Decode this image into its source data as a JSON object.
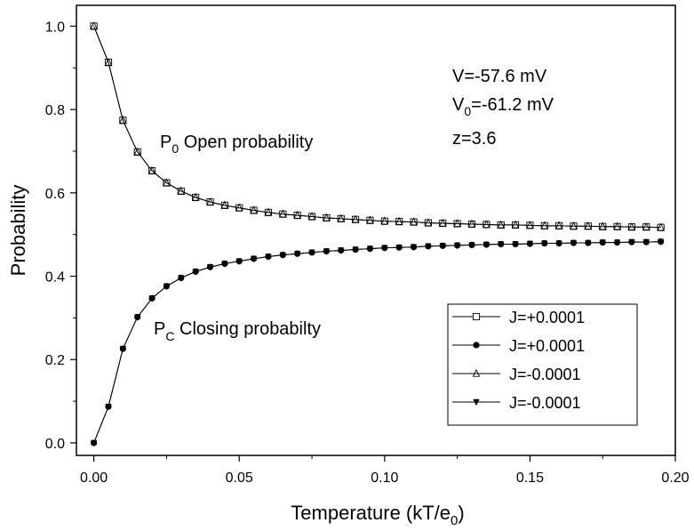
{
  "chart_data": {
    "type": "line",
    "xlabel": "Temperature (kT/e",
    "xlabel_sub": "0",
    "xlabel_end": ")",
    "ylabel": "Probability",
    "xlim": [
      -0.006,
      0.2
    ],
    "ylim": [
      -0.03,
      1.05
    ],
    "grid": false,
    "x_ticks": [
      {
        "value": 0.0,
        "label": "0.00"
      },
      {
        "value": 0.05,
        "label": "0.05"
      },
      {
        "value": 0.1,
        "label": "0.10"
      },
      {
        "value": 0.15,
        "label": "0.15"
      },
      {
        "value": 0.2,
        "label": "0.20"
      }
    ],
    "y_ticks": [
      {
        "value": 0.0,
        "label": "0.0"
      },
      {
        "value": 0.2,
        "label": "0.2"
      },
      {
        "value": 0.4,
        "label": "0.4"
      },
      {
        "value": 0.6,
        "label": "0.6"
      },
      {
        "value": 0.8,
        "label": "0.8"
      },
      {
        "value": 1.0,
        "label": "1.0"
      }
    ],
    "x": [
      0.0,
      0.005,
      0.01,
      0.015,
      0.02,
      0.025,
      0.03,
      0.035,
      0.04,
      0.045,
      0.05,
      0.055,
      0.06,
      0.065,
      0.07,
      0.075,
      0.08,
      0.085,
      0.09,
      0.095,
      0.1,
      0.105,
      0.11,
      0.115,
      0.12,
      0.125,
      0.13,
      0.135,
      0.14,
      0.145,
      0.15,
      0.155,
      0.16,
      0.165,
      0.17,
      0.175,
      0.18,
      0.185,
      0.19,
      0.195
    ],
    "series": [
      {
        "name": "J=+0.0001",
        "marker": "square-open",
        "values": [
          1.0,
          0.913,
          0.774,
          0.698,
          0.653,
          0.624,
          0.604,
          0.589,
          0.578,
          0.57,
          0.564,
          0.558,
          0.553,
          0.549,
          0.546,
          0.543,
          0.54,
          0.538,
          0.536,
          0.534,
          0.532,
          0.531,
          0.53,
          0.528,
          0.527,
          0.526,
          0.525,
          0.524,
          0.523,
          0.523,
          0.522,
          0.521,
          0.521,
          0.52,
          0.52,
          0.519,
          0.519,
          0.518,
          0.518,
          0.517
        ]
      },
      {
        "name": "J=+0.0001",
        "marker": "circle-filled",
        "values": [
          0.0,
          0.087,
          0.226,
          0.302,
          0.347,
          0.376,
          0.396,
          0.411,
          0.422,
          0.43,
          0.436,
          0.442,
          0.447,
          0.451,
          0.454,
          0.457,
          0.46,
          0.462,
          0.464,
          0.466,
          0.468,
          0.469,
          0.47,
          0.472,
          0.473,
          0.474,
          0.475,
          0.476,
          0.477,
          0.477,
          0.478,
          0.479,
          0.479,
          0.48,
          0.48,
          0.481,
          0.481,
          0.482,
          0.482,
          0.483
        ]
      },
      {
        "name": "J=-0.0001",
        "marker": "triangle-up-open",
        "values": [
          1.0,
          0.913,
          0.774,
          0.698,
          0.653,
          0.624,
          0.604,
          0.589,
          0.578,
          0.57,
          0.564,
          0.558,
          0.553,
          0.549,
          0.546,
          0.543,
          0.54,
          0.538,
          0.536,
          0.534,
          0.532,
          0.531,
          0.53,
          0.528,
          0.527,
          0.526,
          0.525,
          0.524,
          0.523,
          0.523,
          0.522,
          0.521,
          0.521,
          0.52,
          0.52,
          0.519,
          0.519,
          0.518,
          0.518,
          0.517
        ]
      },
      {
        "name": "J=-0.0001",
        "marker": "triangle-down-filled",
        "values": [
          0.0,
          0.087,
          0.226,
          0.302,
          0.347,
          0.376,
          0.396,
          0.411,
          0.422,
          0.43,
          0.436,
          0.442,
          0.447,
          0.451,
          0.454,
          0.457,
          0.46,
          0.462,
          0.464,
          0.466,
          0.468,
          0.469,
          0.47,
          0.472,
          0.473,
          0.474,
          0.475,
          0.476,
          0.477,
          0.477,
          0.478,
          0.479,
          0.479,
          0.48,
          0.48,
          0.481,
          0.481,
          0.482,
          0.482,
          0.483
        ]
      }
    ],
    "annotations": {
      "open_label": {
        "main": "P",
        "sub": "0",
        "rest": " Open probability"
      },
      "closing_label": {
        "main": "P",
        "sub": "C",
        "rest": " Closing probabilty"
      },
      "params": [
        {
          "main": "V=-57.6 mV",
          "sub": "",
          "rest": ""
        },
        {
          "main": "V",
          "sub": "0",
          "rest": "=-61.2 mV"
        },
        {
          "main": "z=3.6",
          "sub": "",
          "rest": ""
        }
      ]
    },
    "legend_position": "bottom-right"
  }
}
